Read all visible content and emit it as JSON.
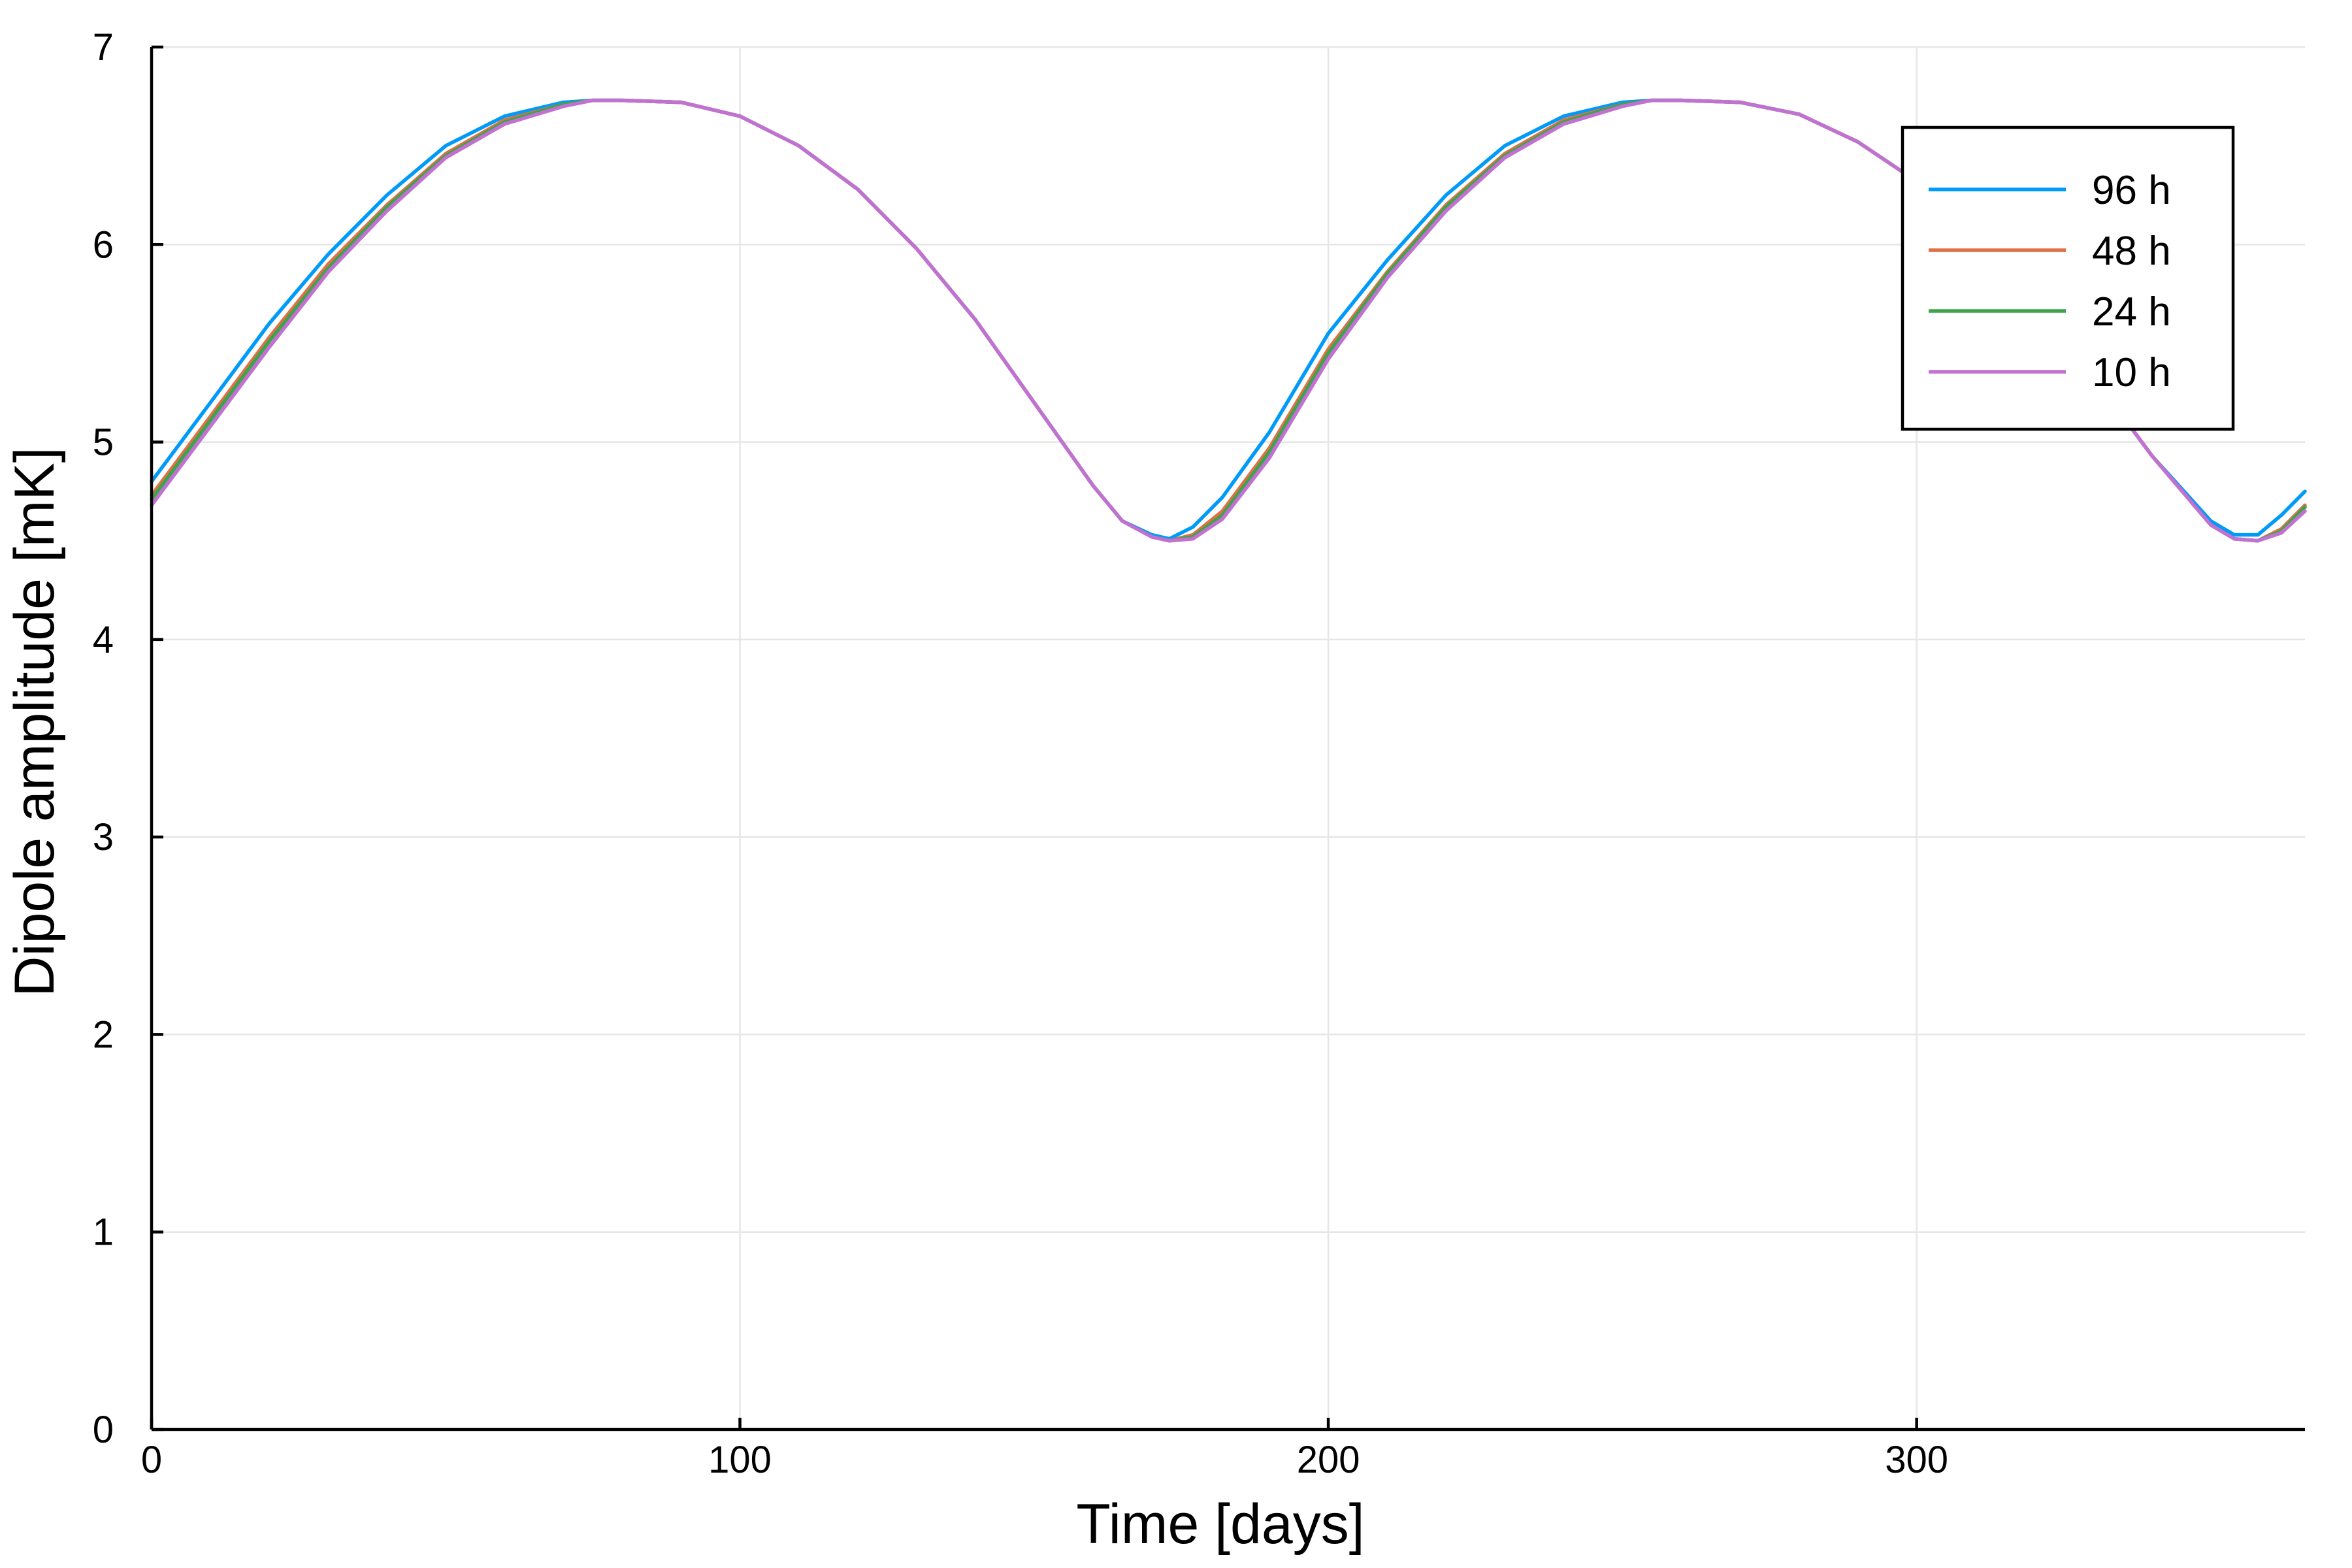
{
  "chart_data": {
    "type": "line",
    "title": "",
    "xlabel": "Time [days]",
    "ylabel": "Dipole amplitude [mK]",
    "xlim": [
      0,
      366
    ],
    "ylim": [
      0,
      7
    ],
    "xticks": [
      0,
      100,
      200,
      300
    ],
    "yticks": [
      0,
      1,
      2,
      3,
      4,
      5,
      6,
      7
    ],
    "grid": true,
    "legend_position": "top-right",
    "series": [
      {
        "name": "96 h",
        "color": "#009af9",
        "x": [
          0,
          10,
          20,
          30,
          40,
          50,
          60,
          70,
          75,
          80,
          90,
          100,
          110,
          120,
          130,
          140,
          150,
          160,
          165,
          170,
          173,
          177,
          182,
          190,
          200,
          210,
          220,
          230,
          240,
          250,
          255,
          260,
          270,
          280,
          290,
          300,
          310,
          320,
          330,
          340,
          350,
          354,
          358,
          362,
          366
        ],
        "y": [
          4.8,
          5.2,
          5.6,
          5.95,
          6.25,
          6.5,
          6.65,
          6.72,
          6.73,
          6.73,
          6.72,
          6.65,
          6.5,
          6.28,
          5.98,
          5.62,
          5.2,
          4.78,
          4.6,
          4.53,
          4.51,
          4.57,
          4.72,
          5.05,
          5.55,
          5.92,
          6.25,
          6.5,
          6.65,
          6.72,
          6.73,
          6.73,
          6.72,
          6.66,
          6.52,
          6.32,
          6.05,
          5.72,
          5.33,
          4.93,
          4.6,
          4.53,
          4.53,
          4.63,
          4.75
        ]
      },
      {
        "name": "48 h",
        "color": "#e26f46",
        "x": [
          0,
          10,
          20,
          30,
          40,
          50,
          60,
          70,
          75,
          80,
          90,
          100,
          110,
          120,
          130,
          140,
          150,
          160,
          165,
          170,
          173,
          177,
          182,
          190,
          200,
          210,
          220,
          230,
          240,
          250,
          255,
          260,
          270,
          280,
          290,
          300,
          310,
          320,
          330,
          340,
          350,
          354,
          358,
          362,
          366
        ],
        "y": [
          4.73,
          5.13,
          5.53,
          5.9,
          6.2,
          6.46,
          6.63,
          6.71,
          6.73,
          6.73,
          6.72,
          6.65,
          6.5,
          6.28,
          5.98,
          5.62,
          5.2,
          4.78,
          4.6,
          4.52,
          4.5,
          4.53,
          4.65,
          4.97,
          5.47,
          5.86,
          6.2,
          6.46,
          6.63,
          6.71,
          6.73,
          6.73,
          6.72,
          6.66,
          6.52,
          6.32,
          6.05,
          5.72,
          5.33,
          4.93,
          4.58,
          4.51,
          4.5,
          4.56,
          4.68
        ]
      },
      {
        "name": "24 h",
        "color": "#3da44d",
        "x": [
          0,
          10,
          20,
          30,
          40,
          50,
          60,
          70,
          75,
          80,
          90,
          100,
          110,
          120,
          130,
          140,
          150,
          160,
          165,
          170,
          173,
          177,
          182,
          190,
          200,
          210,
          220,
          230,
          240,
          250,
          255,
          260,
          270,
          280,
          290,
          300,
          310,
          320,
          330,
          340,
          350,
          354,
          358,
          362,
          366
        ],
        "y": [
          4.71,
          5.11,
          5.51,
          5.88,
          6.19,
          6.45,
          6.62,
          6.71,
          6.73,
          6.73,
          6.72,
          6.65,
          6.5,
          6.28,
          5.98,
          5.62,
          5.2,
          4.78,
          4.6,
          4.52,
          4.5,
          4.52,
          4.63,
          4.95,
          5.45,
          5.85,
          6.19,
          6.45,
          6.62,
          6.71,
          6.73,
          6.73,
          6.72,
          6.66,
          6.52,
          6.32,
          6.05,
          5.72,
          5.33,
          4.93,
          4.58,
          4.51,
          4.5,
          4.55,
          4.67
        ]
      },
      {
        "name": "10 h",
        "color": "#c271d2",
        "x": [
          0,
          10,
          20,
          30,
          40,
          50,
          60,
          70,
          75,
          80,
          90,
          100,
          110,
          120,
          130,
          140,
          150,
          160,
          165,
          170,
          173,
          177,
          182,
          190,
          200,
          210,
          220,
          230,
          240,
          250,
          255,
          260,
          270,
          280,
          290,
          300,
          310,
          320,
          330,
          340,
          350,
          354,
          358,
          362,
          366
        ],
        "y": [
          4.68,
          5.08,
          5.48,
          5.86,
          6.17,
          6.44,
          6.61,
          6.7,
          6.73,
          6.73,
          6.72,
          6.65,
          6.5,
          6.28,
          5.98,
          5.62,
          5.2,
          4.78,
          4.6,
          4.52,
          4.5,
          4.51,
          4.61,
          4.92,
          5.42,
          5.83,
          6.17,
          6.44,
          6.61,
          6.7,
          6.73,
          6.73,
          6.72,
          6.66,
          6.52,
          6.32,
          6.05,
          5.72,
          5.33,
          4.93,
          4.58,
          4.51,
          4.5,
          4.54,
          4.65
        ]
      }
    ]
  }
}
